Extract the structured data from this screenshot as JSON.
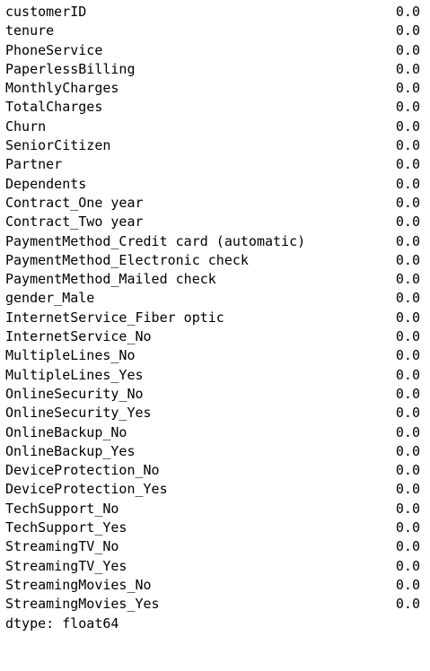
{
  "series": {
    "rows": [
      {
        "name": "customerID",
        "value": "0.0"
      },
      {
        "name": "tenure",
        "value": "0.0"
      },
      {
        "name": "PhoneService",
        "value": "0.0"
      },
      {
        "name": "PaperlessBilling",
        "value": "0.0"
      },
      {
        "name": "MonthlyCharges",
        "value": "0.0"
      },
      {
        "name": "TotalCharges",
        "value": "0.0"
      },
      {
        "name": "Churn",
        "value": "0.0"
      },
      {
        "name": "SeniorCitizen",
        "value": "0.0"
      },
      {
        "name": "Partner",
        "value": "0.0"
      },
      {
        "name": "Dependents",
        "value": "0.0"
      },
      {
        "name": "Contract_One year",
        "value": "0.0"
      },
      {
        "name": "Contract_Two year",
        "value": "0.0"
      },
      {
        "name": "PaymentMethod_Credit card (automatic)",
        "value": "0.0"
      },
      {
        "name": "PaymentMethod_Electronic check",
        "value": "0.0"
      },
      {
        "name": "PaymentMethod_Mailed check",
        "value": "0.0"
      },
      {
        "name": "gender_Male",
        "value": "0.0"
      },
      {
        "name": "InternetService_Fiber optic",
        "value": "0.0"
      },
      {
        "name": "InternetService_No",
        "value": "0.0"
      },
      {
        "name": "MultipleLines_No",
        "value": "0.0"
      },
      {
        "name": "MultipleLines_Yes",
        "value": "0.0"
      },
      {
        "name": "OnlineSecurity_No",
        "value": "0.0"
      },
      {
        "name": "OnlineSecurity_Yes",
        "value": "0.0"
      },
      {
        "name": "OnlineBackup_No",
        "value": "0.0"
      },
      {
        "name": "OnlineBackup_Yes",
        "value": "0.0"
      },
      {
        "name": "DeviceProtection_No",
        "value": "0.0"
      },
      {
        "name": "DeviceProtection_Yes",
        "value": "0.0"
      },
      {
        "name": "TechSupport_No",
        "value": "0.0"
      },
      {
        "name": "TechSupport_Yes",
        "value": "0.0"
      },
      {
        "name": "StreamingTV_No",
        "value": "0.0"
      },
      {
        "name": "StreamingTV_Yes",
        "value": "0.0"
      },
      {
        "name": "StreamingMovies_No",
        "value": "0.0"
      },
      {
        "name": "StreamingMovies_Yes",
        "value": "0.0"
      }
    ],
    "dtype_line": "dtype: float64"
  },
  "colors": {
    "background": "#ffffff",
    "text": "#000000"
  }
}
